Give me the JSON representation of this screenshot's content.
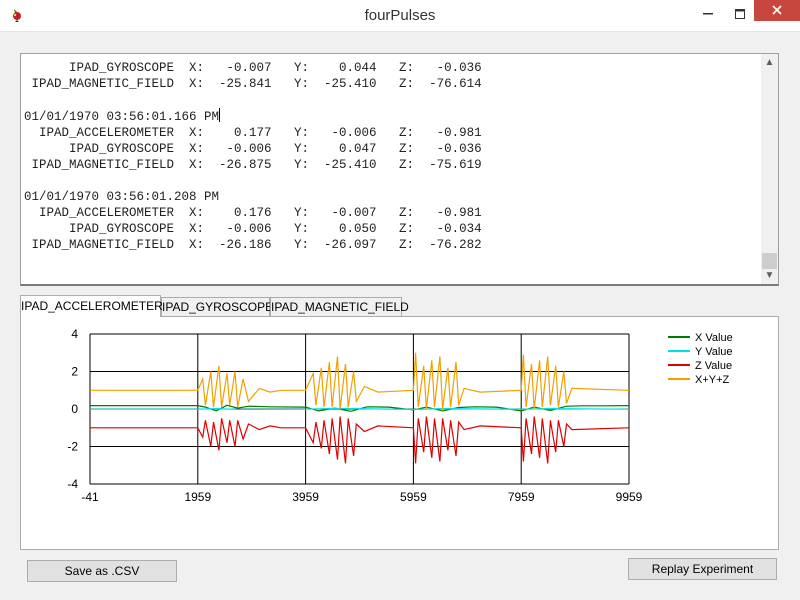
{
  "window": {
    "title": "fourPulses"
  },
  "log": {
    "lines": [
      "      IPAD_GYROSCOPE  X:   -0.007   Y:    0.044   Z:   -0.036",
      " IPAD_MAGNETIC_FIELD  X:  -25.841   Y:  -25.410   Z:  -76.614",
      "",
      "01/01/1970 03:56:01.166 PM",
      "  IPAD_ACCELEROMETER  X:    0.177   Y:   -0.006   Z:   -0.981",
      "      IPAD_GYROSCOPE  X:   -0.006   Y:    0.047   Z:   -0.036",
      " IPAD_MAGNETIC_FIELD  X:  -26.875   Y:  -25.410   Z:  -75.619",
      "",
      "01/01/1970 03:56:01.208 PM",
      "  IPAD_ACCELEROMETER  X:    0.176   Y:   -0.007   Z:   -0.981",
      "      IPAD_GYROSCOPE  X:   -0.006   Y:    0.050   Z:   -0.034",
      " IPAD_MAGNETIC_FIELD  X:  -26.186   Y:  -26.097   Z:  -76.282"
    ]
  },
  "tabs": [
    {
      "label": "IPAD_ACCELEROMETER",
      "active": true
    },
    {
      "label": "IPAD_GYROSCOPE",
      "active": false
    },
    {
      "label": "IPAD_MAGNETIC_FIELD",
      "active": false
    }
  ],
  "buttons": {
    "save_csv": "Save as .CSV",
    "replay": "Replay Experiment"
  },
  "icons": {
    "app": "app-icon",
    "minimize": "minimize-icon",
    "maximize": "maximize-icon",
    "close": "close-icon",
    "scroll_up": "chevron-up-icon",
    "scroll_down": "chevron-down-icon"
  },
  "chart_data": {
    "type": "line",
    "xlim": [
      -41,
      9959
    ],
    "ylim": [
      -4,
      4
    ],
    "x_ticks": [
      -41,
      1959,
      3959,
      5959,
      7959,
      9959
    ],
    "y_ticks": [
      -4,
      -2,
      0,
      2,
      4
    ],
    "grid": true,
    "legend_position": "top-right",
    "pulse_windows": [
      [
        2000,
        2700
      ],
      [
        4100,
        4950
      ],
      [
        5950,
        6850
      ],
      [
        8000,
        8800
      ]
    ],
    "series": [
      {
        "name": "X Value",
        "color": "#007a00",
        "x": [
          -41,
          1959,
          2100,
          2300,
          2500,
          2700,
          2900,
          3300,
          3959,
          4200,
          4500,
          4800,
          5100,
          5500,
          5959,
          6200,
          6500,
          6800,
          7100,
          7500,
          7959,
          8200,
          8500,
          8800,
          9100,
          9500,
          9959
        ],
        "values": [
          0.18,
          0.18,
          0.1,
          -0.1,
          0.2,
          0.05,
          0.15,
          0.12,
          0.1,
          -0.1,
          0.05,
          -0.12,
          0.12,
          0.1,
          -0.05,
          0.1,
          -0.1,
          0.08,
          0.12,
          0.1,
          -0.1,
          0.1,
          -0.08,
          0.15,
          0.17,
          0.17,
          0.18
        ]
      },
      {
        "name": "Y Value",
        "color": "#00e0e0",
        "x": [
          -41,
          1959,
          2300,
          2700,
          3959,
          4500,
          5959,
          6500,
          7959,
          8500,
          9959
        ],
        "values": [
          -0.01,
          -0.01,
          0.02,
          -0.02,
          -0.01,
          0.03,
          -0.02,
          0.02,
          -0.01,
          0.02,
          -0.01
        ]
      },
      {
        "name": "Z Value",
        "color": "#e00000",
        "x": [
          -41,
          1959,
          2050,
          2100,
          2200,
          2250,
          2350,
          2400,
          2500,
          2550,
          2650,
          2700,
          2800,
          2900,
          3100,
          3300,
          3500,
          3959,
          4100,
          4150,
          4250,
          4300,
          4400,
          4450,
          4550,
          4600,
          4700,
          4750,
          4850,
          4900,
          5050,
          5300,
          5959,
          6000,
          6050,
          6150,
          6200,
          6300,
          6350,
          6450,
          6500,
          6600,
          6650,
          6750,
          6800,
          6900,
          7200,
          7959,
          8000,
          8050,
          8150,
          8200,
          8300,
          8350,
          8450,
          8500,
          8600,
          8650,
          8750,
          8800,
          8900,
          9959
        ],
        "values": [
          -1.0,
          -1.0,
          -1.5,
          -0.6,
          -2.0,
          -0.7,
          -2.2,
          -0.5,
          -1.8,
          -0.6,
          -2.0,
          -0.6,
          -1.6,
          -0.8,
          -1.1,
          -0.9,
          -1.0,
          -1.0,
          -1.8,
          -0.7,
          -2.1,
          -0.6,
          -2.4,
          -0.5,
          -2.7,
          -0.4,
          -2.9,
          -0.5,
          -2.5,
          -0.8,
          -1.2,
          -0.9,
          -1.0,
          -2.9,
          -0.5,
          -2.3,
          -0.4,
          -2.6,
          -0.5,
          -2.8,
          -0.5,
          -2.2,
          -0.6,
          -2.5,
          -0.7,
          -1.1,
          -0.9,
          -1.0,
          -2.8,
          -0.5,
          -2.4,
          -0.4,
          -2.6,
          -0.5,
          -2.9,
          -0.6,
          -2.3,
          -0.6,
          -2.0,
          -0.8,
          -1.1,
          -1.0
        ]
      },
      {
        "name": "X+Y+Z",
        "color": "#f0a000",
        "x": [
          -41,
          1959,
          2050,
          2100,
          2200,
          2250,
          2350,
          2400,
          2500,
          2550,
          2650,
          2700,
          2800,
          2900,
          3100,
          3300,
          3500,
          3959,
          4100,
          4150,
          4250,
          4300,
          4400,
          4450,
          4550,
          4600,
          4700,
          4750,
          4850,
          4900,
          5050,
          5300,
          5959,
          6000,
          6050,
          6150,
          6200,
          6300,
          6350,
          6450,
          6500,
          6600,
          6650,
          6750,
          6800,
          6900,
          7200,
          7959,
          8000,
          8050,
          8150,
          8200,
          8300,
          8350,
          8450,
          8500,
          8600,
          8650,
          8750,
          8800,
          8900,
          9959
        ],
        "values": [
          1.0,
          1.0,
          1.6,
          0.2,
          2.0,
          0.1,
          2.3,
          0.1,
          1.9,
          0.2,
          2.0,
          0.1,
          1.6,
          0.4,
          1.1,
          0.9,
          1.0,
          1.0,
          1.9,
          0.2,
          2.2,
          0.1,
          2.5,
          0.1,
          2.8,
          0.0,
          2.4,
          0.1,
          2.0,
          0.4,
          1.2,
          0.9,
          1.0,
          3.0,
          0.1,
          2.3,
          0.0,
          2.6,
          0.1,
          2.8,
          0.0,
          2.2,
          0.1,
          2.5,
          0.2,
          1.1,
          0.9,
          1.0,
          2.9,
          0.1,
          2.4,
          0.0,
          2.6,
          0.1,
          2.8,
          0.2,
          2.3,
          0.1,
          2.0,
          0.3,
          1.1,
          1.0
        ]
      }
    ]
  }
}
